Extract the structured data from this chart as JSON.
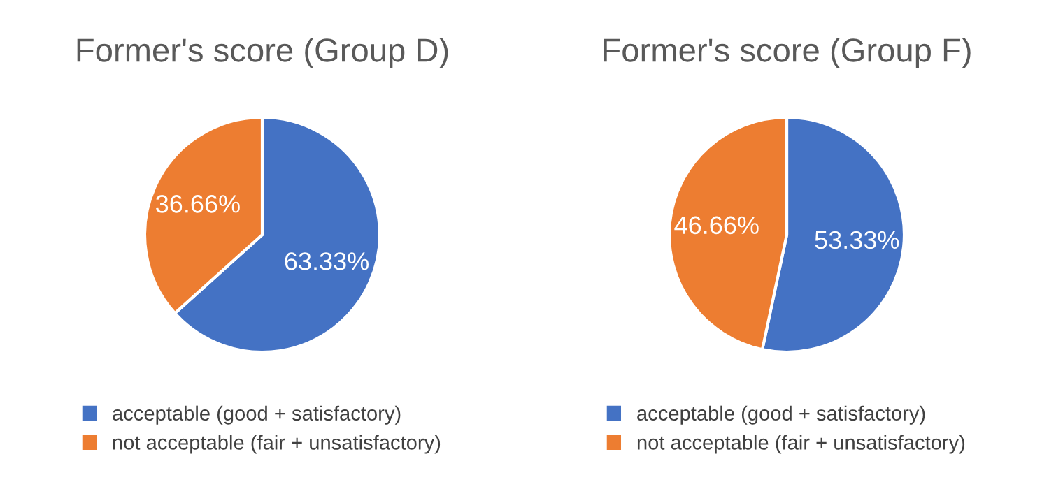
{
  "chart_data": [
    {
      "type": "pie",
      "title": "Former's score (Group D)",
      "categories": [
        "acceptable (good + satisfactory)",
        "not acceptable (fair + unsatisfactory)"
      ],
      "values": [
        63.33,
        36.66
      ],
      "value_labels": [
        "63.33%",
        "36.66%"
      ],
      "colors": [
        "#4472c4",
        "#ed7d31"
      ],
      "legend": "bottom"
    },
    {
      "type": "pie",
      "title": "Former's score (Group F)",
      "categories": [
        "acceptable (good + satisfactory)",
        "not acceptable (fair + unsatisfactory)"
      ],
      "values": [
        53.33,
        46.66
      ],
      "value_labels": [
        "53.33%",
        "46.66%"
      ],
      "colors": [
        "#4472c4",
        "#ed7d31"
      ],
      "legend": "bottom"
    }
  ]
}
